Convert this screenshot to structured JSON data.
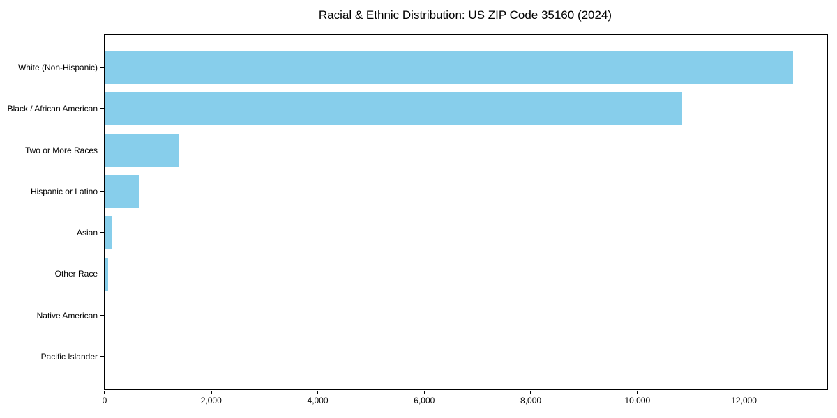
{
  "title": "Racial & Ethnic Distribution: US ZIP Code 35160 (2024)",
  "colors": {
    "bar": "#87CEEB",
    "text": "#000000",
    "spine": "#000000",
    "background": "#FFFFFF"
  },
  "chart_data": {
    "type": "bar",
    "orientation": "horizontal",
    "title": "Racial & Ethnic Distribution: US ZIP Code 35160 (2024)",
    "xlabel": "",
    "ylabel": "",
    "categories": [
      "White (Non-Hispanic)",
      "Black / African American",
      "Two or More Races",
      "Hispanic or Latino",
      "Asian",
      "Other Race",
      "Native American",
      "Pacific Islander"
    ],
    "values": [
      12917,
      10836,
      1387,
      641,
      150,
      64,
      15,
      0
    ],
    "xlim": [
      0,
      13563
    ],
    "xticks": [
      0,
      2000,
      4000,
      6000,
      8000,
      10000,
      12000
    ],
    "xtick_labels": [
      "0",
      "2,000",
      "4,000",
      "6,000",
      "8,000",
      "10,000",
      "12,000"
    ],
    "bar_color": "#87CEEB",
    "grid": false,
    "legend": false
  }
}
